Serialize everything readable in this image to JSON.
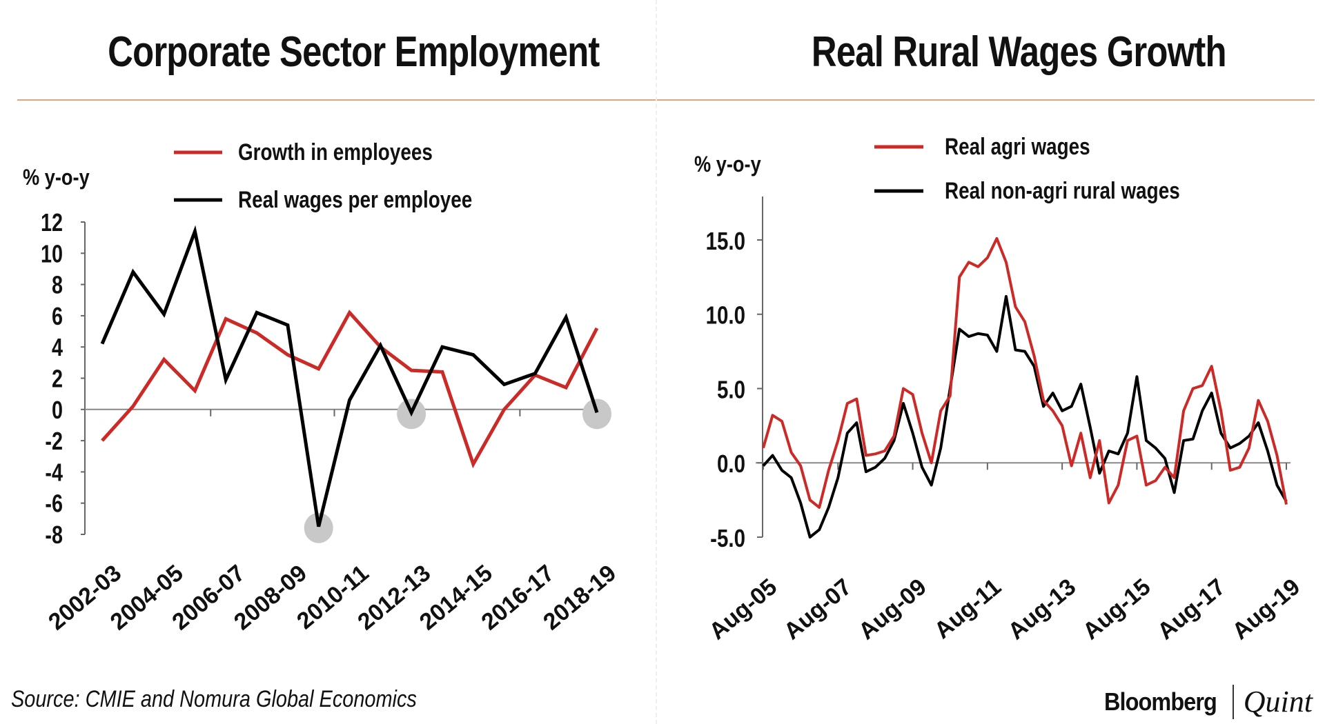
{
  "chart_data": [
    {
      "type": "line",
      "title": "Corporate Sector Employment",
      "ylabel": "% y-o-y",
      "ylim": [
        -8,
        12
      ],
      "yticks": [
        12,
        10,
        8,
        6,
        4,
        2,
        0,
        -2,
        -4,
        -6,
        -8
      ],
      "categories": [
        "2002-03",
        "2003-04",
        "2004-05",
        "2005-06",
        "2006-07",
        "2007-08",
        "2008-09",
        "2009-10",
        "2010-11",
        "2011-12",
        "2012-13",
        "2013-14",
        "2014-15",
        "2015-16",
        "2016-17",
        "2017-18",
        "2018-19"
      ],
      "xtick_labels": [
        "2002-03",
        "2004-05",
        "2006-07",
        "2008-09",
        "2010-11",
        "2012-13",
        "2014-15",
        "2016-17",
        "2018-19"
      ],
      "series": [
        {
          "name": "Growth in employees",
          "color": "#cc2a27",
          "values": [
            -2,
            0.2,
            3.2,
            1.2,
            5.8,
            4.9,
            3.5,
            2.6,
            6.2,
            4.0,
            2.5,
            2.4,
            -3.5,
            0,
            2.2,
            1.4,
            5.2
          ]
        },
        {
          "name": "Real wages per employee",
          "color": "#000000",
          "values": [
            4.2,
            8.8,
            6.1,
            11.4,
            1.9,
            6.2,
            5.4,
            -7.5,
            0.6,
            4.1,
            -0.2,
            4.0,
            3.5,
            1.6,
            2.3,
            5.9,
            -0.2
          ]
        }
      ],
      "highlighted_points": [
        "2009-10",
        "2012-13",
        "2018-19"
      ]
    },
    {
      "type": "line",
      "title": "Real Rural Wages Growth",
      "ylabel": "% y-o-y",
      "ylim": [
        -5,
        17
      ],
      "yticks": [
        "15.0",
        "10.0",
        "5.0",
        "0.0",
        "-5.0"
      ],
      "x_start": "Aug-05",
      "x_step_months": 3,
      "xtick_labels": [
        "Aug-05",
        "Aug-07",
        "Aug-09",
        "Aug-11",
        "Aug-13",
        "Aug-15",
        "Aug-17",
        "Aug-19"
      ],
      "series": [
        {
          "name": "Real agri wages",
          "color": "#cc2a27",
          "values": [
            1.0,
            3.2,
            2.8,
            0.7,
            -0.2,
            -2.5,
            -3.0,
            -0.5,
            1.5,
            4.0,
            4.3,
            0.5,
            0.6,
            0.8,
            1.8,
            5.0,
            4.6,
            2.0,
            0.0,
            3.5,
            4.5,
            12.5,
            13.5,
            13.2,
            13.8,
            15.1,
            13.5,
            10.5,
            9.5,
            7.2,
            4.2,
            3.5,
            2.5,
            -0.2,
            2.0,
            -1.0,
            1.5,
            -2.7,
            -1.5,
            1.5,
            1.8,
            -1.5,
            -1.2,
            -0.3,
            -1.0,
            3.5,
            5.0,
            5.2,
            6.5,
            3.5,
            -0.5,
            -0.3,
            1.0,
            4.2,
            2.8,
            0.5,
            -2.8
          ]
        },
        {
          "name": "Real non-agri rural wages",
          "color": "#000000",
          "values": [
            -0.2,
            0.5,
            -0.5,
            -1.0,
            -2.7,
            -5.0,
            -4.5,
            -3.0,
            -1.0,
            2.0,
            2.7,
            -0.6,
            -0.3,
            0.3,
            1.5,
            4.0,
            2.0,
            -0.3,
            -1.5,
            1.0,
            5.0,
            9.0,
            8.5,
            8.7,
            8.6,
            7.5,
            11.2,
            7.6,
            7.5,
            6.5,
            3.8,
            4.7,
            3.5,
            3.8,
            5.3,
            2.4,
            -0.7,
            0.8,
            0.6,
            2.0,
            5.8,
            1.5,
            1.0,
            0.3,
            -2.0,
            1.5,
            1.6,
            3.5,
            4.7,
            2.0,
            1.0,
            1.3,
            1.8,
            2.7,
            0.8,
            -1.5,
            -2.6
          ]
        }
      ]
    }
  ],
  "footer": {
    "source": "Source: CMIE and Nomura Global Economics",
    "logo_left": "Bloomberg",
    "logo_right": "Quint"
  }
}
